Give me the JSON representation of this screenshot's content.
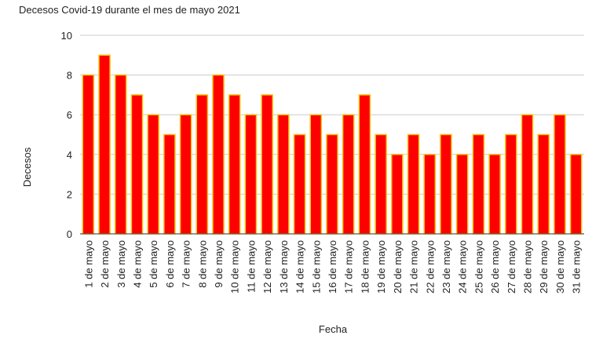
{
  "chart_data": {
    "type": "bar",
    "title": "Decesos Covid-19 durante el mes de mayo 2021",
    "xlabel": "Fecha",
    "ylabel": "Decesos",
    "ylim": [
      0,
      10
    ],
    "yticks": [
      0,
      2,
      4,
      6,
      8,
      10
    ],
    "grid": true,
    "legend": "none",
    "colors": {
      "fill": "#ff0000",
      "stroke": "#f5c518"
    },
    "categories": [
      "1 de mayo",
      "2 de mayo",
      "3 de mayo",
      "4 de mayo",
      "5 de mayo",
      "6 de mayo",
      "7 de mayo",
      "8 de mayo",
      "9 de mayo",
      "10 de mayo",
      "11 de mayo",
      "12 de mayo",
      "13 de mayo",
      "14 de mayo",
      "15 de mayo",
      "16 de mayo",
      "17 de mayo",
      "18 de mayo",
      "19 de mayo",
      "20 de mayo",
      "21 de mayo",
      "22 de mayo",
      "23 de mayo",
      "24 de mayo",
      "25 de mayo",
      "26 de mayo",
      "27 de mayo",
      "28 de mayo",
      "29 de mayo",
      "30 de mayo",
      "31 de mayo"
    ],
    "values": [
      8,
      9,
      8,
      7,
      6,
      5,
      6,
      7,
      8,
      7,
      6,
      7,
      6,
      5,
      6,
      5,
      6,
      7,
      5,
      4,
      5,
      4,
      5,
      4,
      5,
      4,
      5,
      6,
      5,
      6,
      4
    ]
  }
}
